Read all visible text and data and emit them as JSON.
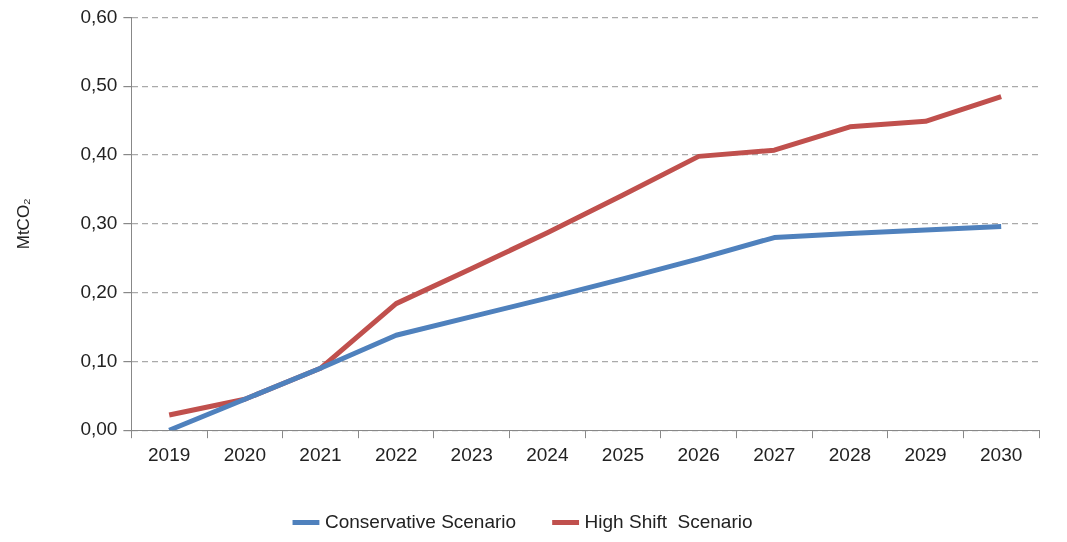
{
  "chart_data": {
    "type": "line",
    "ylabel": "MtCO₂",
    "categories": [
      "2019",
      "2020",
      "2021",
      "2022",
      "2023",
      "2024",
      "2025",
      "2026",
      "2027",
      "2028",
      "2029",
      "2030"
    ],
    "series": [
      {
        "name": "Conservative Scenario",
        "color": "#4f81bd",
        "values": [
          0,
          0.045,
          0.09,
          0.138,
          0.165,
          0.192,
          0.22,
          0.249,
          0.28,
          0.286,
          0.291,
          0.296
        ]
      },
      {
        "name": "High Shift  Scenario",
        "color": "#c0504d",
        "values": [
          0.022,
          0.045,
          0.09,
          0.184,
          0.235,
          0.287,
          0.342,
          0.398,
          0.407,
          0.441,
          0.449,
          0.485
        ]
      }
    ],
    "ylim": [
      0,
      0.6
    ],
    "yticks": [
      {
        "value": 0,
        "label": "0,00"
      },
      {
        "value": 0.1,
        "label": "0,10"
      },
      {
        "value": 0.2,
        "label": "0,20"
      },
      {
        "value": 0.3,
        "label": "0,30"
      },
      {
        "value": 0.4,
        "label": "0,40"
      },
      {
        "value": 0.5,
        "label": "0,50"
      },
      {
        "value": 0.6,
        "label": "0,60"
      }
    ],
    "grid": "y",
    "legend": "bottom",
    "marker": "none",
    "line_style": "solid"
  }
}
